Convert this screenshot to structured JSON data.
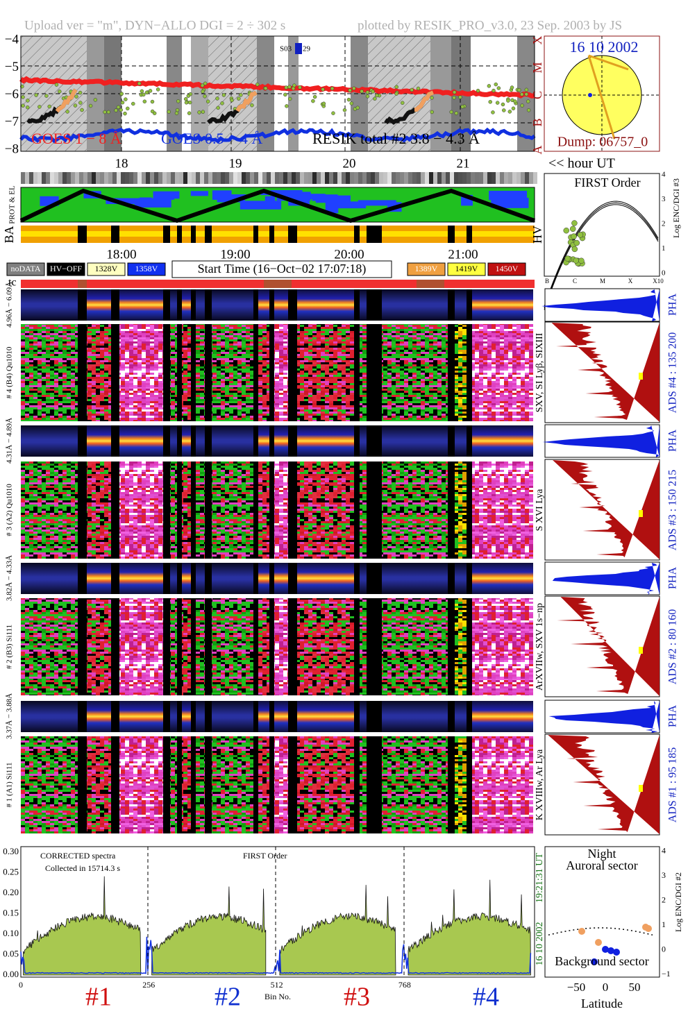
{
  "header": {
    "left": "Upload ver = \"m\", DYN−ALLO DGI =   2 ÷ 302 s",
    "right": "plotted by RESIK_PRO_v3.0, 23 Sep. 2003 by JS"
  },
  "goes_panel": {
    "yticks": [
      "−4",
      "−5",
      "−6",
      "−7",
      "−8"
    ],
    "classes": [
      "X",
      "M",
      "C",
      "B",
      "A"
    ],
    "legend": [
      "GOES 1 − 8 Å",
      "GOES 0.5 − 4 Å",
      "RESIK total #2  3.8 − 4.3 Å"
    ],
    "marker": [
      "S03",
      "29"
    ]
  },
  "sun_panel": {
    "date": "16 10 2002",
    "dump": "Dump: 06757_0"
  },
  "hours": {
    "labels": [
      "18",
      "19",
      "20",
      "21"
    ],
    "unit": "<< hour UT"
  },
  "strip_labels": {
    "prot": "PROT & EL",
    "ba": "BA",
    "hv": "HV"
  },
  "first_order_panel": {
    "title": "FIRST Order",
    "yticks": [
      "0",
      "1",
      "2",
      "3",
      "4"
    ],
    "ylabel": "Log ENC/DGI #3",
    "xlabels": [
      "B",
      "C",
      "M",
      "X",
      "X10"
    ]
  },
  "time_axis": [
    "18:00",
    "19:00",
    "20:00",
    "21:00"
  ],
  "status_legend": {
    "left": [
      "noDATA",
      "HV−OFF",
      "1328V",
      "1358V"
    ],
    "start_time": "Start Time (16−Oct−02 17:07:18)",
    "right": [
      "1389V",
      "1419V",
      "1450V"
    ]
  },
  "tc": "tc",
  "channels": [
    {
      "range": "4.96Å − 6.09Å",
      "name": "# 4 (B4) Qu1010",
      "pha": "PHA",
      "ads": "ADS #4 :   135 200",
      "lines": "SXV, SI Lyβ, SIXIII"
    },
    {
      "range": "4.31Å − 4.89Å",
      "name": "# 3 (A2) Qu1010",
      "pha": "PHA",
      "ads": "ADS #3 :  150 215",
      "lines": "S XVI Lya"
    },
    {
      "range": "3.82Å − 4.33Å",
      "name": "# 2 (B3) Si111",
      "pha": "PHA",
      "ads": "ADS #2 :   80 160",
      "lines": "ArXVIIw, SXV 1s−np"
    },
    {
      "range": "3.37Å − 3.88Å",
      "name": "# 1 (A1) Si111",
      "pha": "PHA",
      "ads": "ADS #1 :   95 185",
      "lines": "K XVIIIw, Ar Lya"
    }
  ],
  "spectrum_panel": {
    "yticks": [
      "0.00",
      "0.05",
      "0.10",
      "0.15",
      "0.20",
      "0.25",
      "0.30"
    ],
    "xticks": [
      "0",
      "256",
      "512",
      "768"
    ],
    "xlabel": "Bin No.",
    "note1": "CORRECTED spectra",
    "note2": "Collected in 15714.3 s",
    "order": "FIRST Order",
    "crystals": [
      "#1",
      "#2",
      "#3",
      "#4"
    ],
    "date": "16 10 2002",
    "time": "19:21:31 UT"
  },
  "orbit_panel": {
    "night": "Night",
    "auroral": "Auroral sector",
    "background": "Background sector",
    "yticks": [
      "−1",
      "0",
      "1",
      "2",
      "3",
      "4"
    ],
    "ylabel": "Log ENC/DGI #2",
    "xticks": [
      "−50",
      "0",
      "50"
    ],
    "xlabel": "Latitude"
  }
}
